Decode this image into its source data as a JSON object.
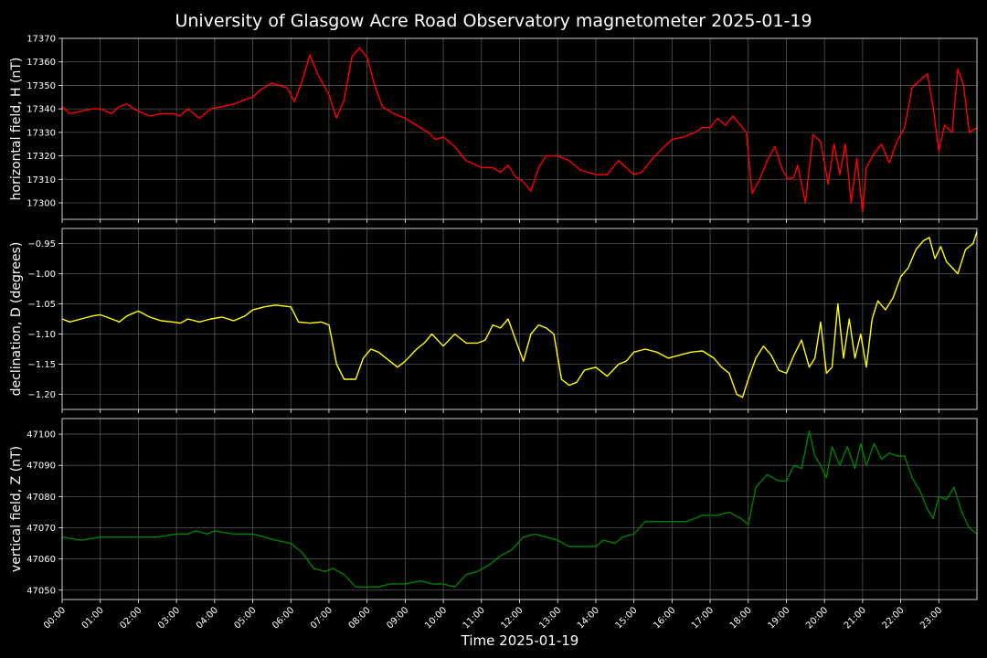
{
  "title": "University of Glasgow Acre Road Observatory magnetometer 2025-01-19",
  "xlabel": "Time 2025-01-19",
  "x_ticks": [
    "00:00",
    "01:00",
    "02:00",
    "03:00",
    "04:00",
    "05:00",
    "06:00",
    "07:00",
    "08:00",
    "09:00",
    "10:00",
    "11:00",
    "12:00",
    "13:00",
    "14:00",
    "15:00",
    "16:00",
    "17:00",
    "18:00",
    "19:00",
    "20:00",
    "21:00",
    "22:00",
    "23:00"
  ],
  "chart_data": [
    {
      "type": "line",
      "ylabel": "horizontal field, H (nT)",
      "color": "#ff0000",
      "xlim": [
        0,
        24
      ],
      "ylim": [
        17293,
        17370
      ],
      "yticks": [
        17300,
        17310,
        17320,
        17330,
        17340,
        17350,
        17360,
        17370
      ],
      "ytick_labels": [
        "17300",
        "17310",
        "17320",
        "17330",
        "17340",
        "17350",
        "17360",
        "17370"
      ],
      "grid": true,
      "x": [
        0,
        0.2,
        0.5,
        0.8,
        1.0,
        1.3,
        1.5,
        1.7,
        2.0,
        2.3,
        2.6,
        2.9,
        3.1,
        3.3,
        3.6,
        3.9,
        4.2,
        4.5,
        4.8,
        5.0,
        5.2,
        5.5,
        5.9,
        6.1,
        6.3,
        6.5,
        6.7,
        7.0,
        7.2,
        7.4,
        7.6,
        7.8,
        8.0,
        8.2,
        8.4,
        8.7,
        9.0,
        9.3,
        9.6,
        9.8,
        10.0,
        10.3,
        10.6,
        11.0,
        11.3,
        11.5,
        11.7,
        11.9,
        12.1,
        12.3,
        12.5,
        12.7,
        13.0,
        13.3,
        13.6,
        14.0,
        14.3,
        14.6,
        14.8,
        15.0,
        15.2,
        15.5,
        15.8,
        16.0,
        16.3,
        16.6,
        16.8,
        17.0,
        17.2,
        17.4,
        17.6,
        17.8,
        17.95,
        18.1,
        18.3,
        18.5,
        18.7,
        18.9,
        19.05,
        19.2,
        19.3,
        19.5,
        19.7,
        19.9,
        20.1,
        20.25,
        20.4,
        20.55,
        20.7,
        20.85,
        21.0,
        21.1,
        21.3,
        21.5,
        21.7,
        21.9,
        22.1,
        22.3,
        22.5,
        22.7,
        22.85,
        23.0,
        23.15,
        23.35,
        23.5,
        23.65,
        23.8,
        24.0
      ],
      "values": [
        17341,
        17338,
        17339,
        17340,
        17340,
        17338,
        17341,
        17342,
        17339,
        17337,
        17338,
        17338,
        17337,
        17340,
        17336,
        17340,
        17341,
        17342,
        17344,
        17345,
        17348,
        17351,
        17349,
        17343,
        17352,
        17363,
        17355,
        17346,
        17336,
        17344,
        17362,
        17366,
        17362,
        17350,
        17341,
        17338,
        17336,
        17333,
        17330,
        17327,
        17328,
        17324,
        17318,
        17315,
        17315,
        17313,
        17316,
        17311,
        17309,
        17305,
        17315,
        17320,
        17320,
        17318,
        17314,
        17312,
        17312,
        17318,
        17315,
        17312,
        17313,
        17319,
        17324,
        17327,
        17328,
        17330,
        17332,
        17332,
        17336,
        17333,
        17337,
        17333,
        17330,
        17304,
        17310,
        17318,
        17324,
        17314,
        17310,
        17311,
        17316,
        17300,
        17329,
        17326,
        17308,
        17325,
        17312,
        17325,
        17300,
        17319,
        17296,
        17315,
        17321,
        17325,
        17317,
        17326,
        17332,
        17349,
        17352,
        17355,
        17341,
        17322,
        17333,
        17330,
        17357,
        17350,
        17330,
        17332
      ]
    },
    {
      "type": "line",
      "ylabel": "declination, D (degrees)",
      "color": "#ffff00",
      "xlim": [
        0,
        24
      ],
      "ylim": [
        -1.225,
        -0.925
      ],
      "yticks": [
        -1.2,
        -1.15,
        -1.1,
        -1.05,
        -1.0,
        -0.95
      ],
      "ytick_labels": [
        "−1.20",
        "−1.15",
        "−1.10",
        "−1.05",
        "−1.00",
        "−0.95"
      ],
      "grid": true,
      "x": [
        0,
        0.2,
        0.5,
        0.8,
        1.0,
        1.3,
        1.5,
        1.7,
        2.0,
        2.3,
        2.6,
        2.9,
        3.1,
        3.3,
        3.6,
        3.9,
        4.2,
        4.5,
        4.8,
        5.0,
        5.3,
        5.6,
        6.0,
        6.2,
        6.5,
        6.8,
        7.0,
        7.2,
        7.4,
        7.7,
        7.9,
        8.1,
        8.3,
        8.5,
        8.8,
        9.0,
        9.3,
        9.5,
        9.7,
        10.0,
        10.3,
        10.6,
        10.9,
        11.1,
        11.3,
        11.5,
        11.7,
        11.9,
        12.1,
        12.3,
        12.5,
        12.7,
        12.9,
        13.1,
        13.3,
        13.5,
        13.7,
        14.0,
        14.3,
        14.6,
        14.8,
        15.0,
        15.3,
        15.6,
        15.9,
        16.2,
        16.5,
        16.8,
        17.1,
        17.3,
        17.5,
        17.7,
        17.85,
        18.0,
        18.2,
        18.4,
        18.6,
        18.8,
        19.0,
        19.2,
        19.4,
        19.6,
        19.75,
        19.9,
        20.05,
        20.2,
        20.35,
        20.5,
        20.65,
        20.8,
        20.95,
        21.1,
        21.25,
        21.4,
        21.6,
        21.8,
        22.0,
        22.2,
        22.4,
        22.6,
        22.75,
        22.9,
        23.05,
        23.2,
        23.35,
        23.5,
        23.7,
        23.9,
        24.0
      ],
      "values": [
        -1.075,
        -1.08,
        -1.075,
        -1.07,
        -1.068,
        -1.075,
        -1.08,
        -1.07,
        -1.062,
        -1.072,
        -1.078,
        -1.08,
        -1.082,
        -1.075,
        -1.08,
        -1.075,
        -1.072,
        -1.078,
        -1.07,
        -1.06,
        -1.055,
        -1.052,
        -1.055,
        -1.08,
        -1.082,
        -1.08,
        -1.085,
        -1.15,
        -1.175,
        -1.175,
        -1.14,
        -1.125,
        -1.13,
        -1.14,
        -1.155,
        -1.145,
        -1.125,
        -1.115,
        -1.1,
        -1.12,
        -1.1,
        -1.115,
        -1.115,
        -1.11,
        -1.085,
        -1.09,
        -1.075,
        -1.11,
        -1.145,
        -1.1,
        -1.085,
        -1.09,
        -1.1,
        -1.175,
        -1.185,
        -1.18,
        -1.16,
        -1.155,
        -1.17,
        -1.15,
        -1.145,
        -1.13,
        -1.125,
        -1.13,
        -1.14,
        -1.135,
        -1.13,
        -1.128,
        -1.14,
        -1.155,
        -1.165,
        -1.2,
        -1.205,
        -1.175,
        -1.14,
        -1.12,
        -1.135,
        -1.16,
        -1.165,
        -1.135,
        -1.11,
        -1.155,
        -1.14,
        -1.08,
        -1.165,
        -1.155,
        -1.05,
        -1.14,
        -1.075,
        -1.14,
        -1.1,
        -1.155,
        -1.075,
        -1.045,
        -1.06,
        -1.04,
        -1.005,
        -0.99,
        -0.96,
        -0.945,
        -0.94,
        -0.975,
        -0.955,
        -0.98,
        -0.99,
        -1.0,
        -0.96,
        -0.95,
        -0.93
      ]
    },
    {
      "type": "line",
      "ylabel": "vertical field, Z (nT)",
      "color": "#008000",
      "xlim": [
        0,
        24
      ],
      "ylim": [
        47047,
        47105
      ],
      "yticks": [
        47050,
        47060,
        47070,
        47080,
        47090,
        47100
      ],
      "ytick_labels": [
        "47050",
        "47060",
        "47070",
        "47080",
        "47090",
        "47100"
      ],
      "grid": true,
      "x": [
        0,
        0.5,
        1.0,
        1.5,
        2.0,
        2.5,
        3.0,
        3.3,
        3.5,
        3.8,
        4.0,
        4.5,
        5.0,
        5.3,
        5.6,
        6.0,
        6.3,
        6.6,
        6.9,
        7.1,
        7.4,
        7.7,
        8.0,
        8.3,
        8.6,
        9.0,
        9.4,
        9.7,
        10.0,
        10.3,
        10.6,
        10.9,
        11.2,
        11.5,
        11.8,
        12.1,
        12.4,
        12.7,
        13.0,
        13.3,
        13.6,
        14.0,
        14.2,
        14.5,
        14.7,
        15.0,
        15.3,
        15.6,
        16.0,
        16.4,
        16.8,
        17.2,
        17.5,
        17.8,
        18.0,
        18.2,
        18.5,
        18.8,
        19.0,
        19.2,
        19.4,
        19.6,
        19.75,
        19.9,
        20.05,
        20.2,
        20.4,
        20.6,
        20.8,
        20.95,
        21.1,
        21.3,
        21.5,
        21.7,
        21.9,
        22.1,
        22.3,
        22.5,
        22.7,
        22.85,
        23.0,
        23.2,
        23.4,
        23.6,
        23.8,
        24.0
      ],
      "values": [
        47067,
        47066,
        47067,
        47067,
        47067,
        47067,
        47068,
        47068,
        47069,
        47068,
        47069,
        47068,
        47068,
        47067,
        47066,
        47065,
        47062,
        47057,
        47056,
        47057,
        47055,
        47051,
        47051,
        47051,
        47052,
        47052,
        47053,
        47052,
        47052,
        47051,
        47055,
        47056,
        47058,
        47061,
        47063,
        47067,
        47068,
        47067,
        47066,
        47064,
        47064,
        47064,
        47066,
        47065,
        47067,
        47068,
        47072,
        47072,
        47072,
        47072,
        47074,
        47074,
        47075,
        47073,
        47071,
        47083,
        47087,
        47085,
        47085,
        47090,
        47089,
        47101,
        47093,
        47090,
        47086,
        47096,
        47090,
        47096,
        47089,
        47097,
        47090,
        47097,
        47092,
        47094,
        47093,
        47093,
        47086,
        47082,
        47076,
        47073,
        47080,
        47079,
        47083,
        47075,
        47070,
        47068
      ]
    }
  ]
}
